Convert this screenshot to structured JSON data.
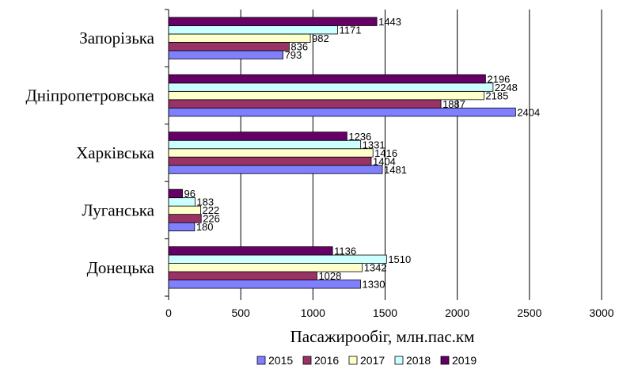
{
  "chart_data": {
    "type": "bar",
    "orientation": "horizontal",
    "categories": [
      "Запорізька",
      "Дніпропетровська",
      "Харківська",
      "Луганська",
      "Донецька"
    ],
    "series": [
      {
        "name": "2015",
        "color": "#8080ff",
        "values": [
          793,
          2404,
          1481,
          180,
          1330
        ]
      },
      {
        "name": "2016",
        "color": "#993366",
        "values": [
          836,
          1887,
          1404,
          226,
          1028
        ]
      },
      {
        "name": "2017",
        "color": "#ffffcc",
        "values": [
          982,
          2185,
          1416,
          222,
          1342
        ]
      },
      {
        "name": "2018",
        "color": "#ccffff",
        "values": [
          1171,
          2248,
          1331,
          183,
          1510
        ]
      },
      {
        "name": "2019",
        "color": "#660066",
        "values": [
          1443,
          2196,
          1236,
          96,
          1136
        ]
      }
    ],
    "xlim": [
      0,
      3000
    ],
    "xticks": [
      "0",
      "500",
      "1000",
      "1500",
      "2000",
      "2500",
      "3000"
    ],
    "xlabel": "Пасажирообіг, млн.пас.км",
    "grid": "vertical",
    "legend_position": "bottom"
  }
}
